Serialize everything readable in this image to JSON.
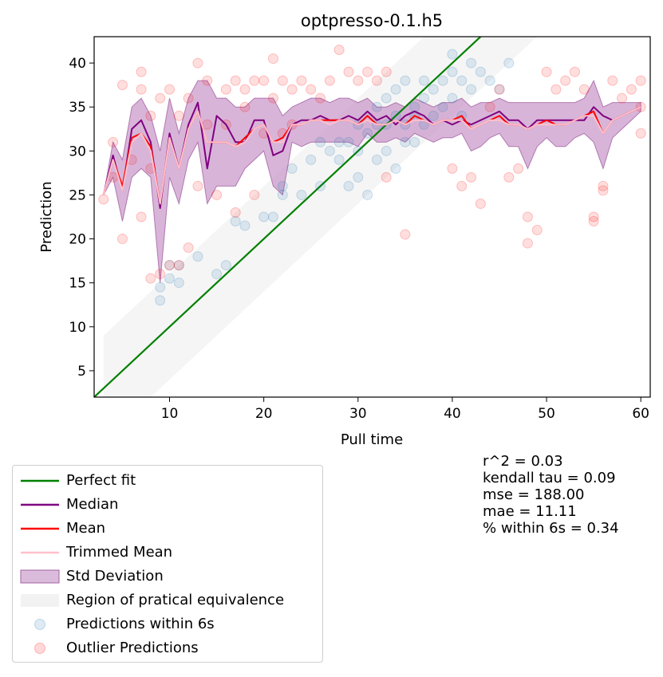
{
  "chart_data": {
    "type": "scatter",
    "title": "optpresso-0.1.h5",
    "xlabel": "Pull time",
    "ylabel": "Prediction",
    "xlim": [
      2,
      61
    ],
    "ylim": [
      2,
      43
    ],
    "xticks": [
      10,
      20,
      30,
      40,
      50,
      60
    ],
    "yticks": [
      5,
      10,
      15,
      20,
      25,
      30,
      35,
      40
    ],
    "grid": false,
    "legend_position": "bottom-left-outside",
    "equivalence_band": 6,
    "colors": {
      "perfect_fit": "#008000",
      "median": "#800080",
      "mean": "#ff0000",
      "trimmed_mean": "#ffc0cb",
      "std": "#c896c8",
      "band": "#f2f2f2",
      "within": "#1f77b4",
      "outlier": "#ff0000"
    },
    "series": [
      {
        "name": "Median",
        "x": [
          3,
          4,
          5,
          6,
          7,
          8,
          9,
          10,
          11,
          12,
          13,
          14,
          15,
          16,
          17,
          18,
          19,
          20,
          21,
          22,
          23,
          24,
          25,
          26,
          27,
          28,
          29,
          30,
          31,
          32,
          33,
          34,
          35,
          36,
          37,
          38,
          39,
          40,
          41,
          42,
          43,
          44,
          45,
          46,
          47,
          48,
          49,
          50,
          51,
          52,
          53,
          54,
          55,
          56,
          57,
          58,
          59,
          60
        ],
        "y": [
          25,
          29.5,
          25.5,
          32.5,
          33.5,
          31,
          23.5,
          32,
          28,
          33,
          35.5,
          28,
          34,
          33,
          31,
          31,
          33.5,
          33.5,
          29.5,
          30,
          33,
          33.5,
          33.5,
          34,
          33.5,
          33.5,
          34,
          33.5,
          34.5,
          33.5,
          34,
          33,
          34,
          34.5,
          34,
          33,
          33.5,
          33,
          33.5,
          33,
          33.5,
          34,
          34.5,
          33.5,
          33.5,
          32.5,
          33.5,
          33.5,
          33.5,
          33.5,
          33.5,
          33.5,
          35,
          34,
          33.5,
          34,
          34.5,
          35
        ]
      },
      {
        "name": "Mean",
        "x": [
          3,
          4,
          5,
          6,
          7,
          8,
          9,
          10,
          11,
          12,
          13,
          14,
          15,
          16,
          17,
          18,
          19,
          20,
          21,
          22,
          23,
          24,
          25,
          26,
          27,
          28,
          29,
          30,
          31,
          32,
          33,
          34,
          35,
          36,
          37,
          38,
          39,
          40,
          41,
          42,
          43,
          44,
          45,
          46,
          47,
          48,
          49,
          50,
          51,
          52,
          53,
          54,
          55,
          56,
          57,
          58,
          59,
          60
        ],
        "y": [
          25,
          29,
          26,
          31.5,
          32,
          30.5,
          24,
          31.5,
          28,
          32.5,
          34.5,
          31,
          31,
          31,
          30.5,
          31.5,
          32.5,
          33,
          31,
          31.5,
          33,
          33,
          33.5,
          33.5,
          33.5,
          33.5,
          33.5,
          33,
          34,
          33,
          33,
          33.5,
          33,
          34,
          33.5,
          33,
          33.5,
          33.5,
          34,
          32.5,
          33,
          33.5,
          34,
          33,
          33,
          32.5,
          33,
          33.5,
          33,
          33,
          33.5,
          34,
          34.5,
          32,
          33.5,
          34,
          34.5,
          35
        ]
      },
      {
        "name": "Trimmed Mean",
        "x": [
          3,
          4,
          5,
          6,
          7,
          8,
          9,
          10,
          11,
          12,
          13,
          14,
          15,
          16,
          17,
          18,
          19,
          20,
          21,
          22,
          23,
          24,
          25,
          26,
          27,
          28,
          29,
          30,
          31,
          32,
          33,
          34,
          35,
          36,
          37,
          38,
          39,
          40,
          41,
          42,
          43,
          44,
          45,
          46,
          47,
          48,
          49,
          50,
          51,
          52,
          53,
          54,
          55,
          56,
          57,
          58,
          59,
          60
        ],
        "y": [
          25,
          29,
          25.5,
          31,
          32,
          30,
          24,
          31.5,
          28,
          32.5,
          34.5,
          31,
          31,
          31,
          30.5,
          31,
          32.5,
          33,
          31,
          31,
          33,
          33,
          33.5,
          33.5,
          33,
          33.5,
          33.5,
          33,
          33.5,
          33,
          33,
          33.5,
          33,
          33.5,
          33.5,
          33,
          33.5,
          33.5,
          33.5,
          32.5,
          33,
          33.5,
          33.5,
          33,
          33,
          32.5,
          33,
          33,
          33,
          33,
          33.5,
          34,
          34,
          32,
          33.5,
          34,
          34.5,
          35
        ]
      },
      {
        "name": "Std Deviation",
        "x": [
          3,
          4,
          5,
          6,
          7,
          8,
          9,
          10,
          11,
          12,
          13,
          14,
          15,
          16,
          17,
          18,
          19,
          20,
          21,
          22,
          23,
          24,
          25,
          26,
          27,
          28,
          29,
          30,
          31,
          32,
          33,
          34,
          35,
          36,
          37,
          38,
          39,
          40,
          41,
          42,
          43,
          44,
          45,
          46,
          47,
          48,
          49,
          50,
          51,
          52,
          53,
          54,
          55,
          56,
          57,
          58,
          59,
          60
        ],
        "upper": [
          25,
          31,
          29,
          35,
          36,
          34,
          30,
          36,
          32,
          36,
          38,
          38,
          36,
          36,
          35,
          35,
          36,
          36,
          36,
          34,
          35,
          35.5,
          36,
          36,
          35.5,
          36,
          36,
          35.5,
          36,
          35,
          35,
          35.5,
          35,
          36,
          35.5,
          35,
          35.5,
          35.5,
          36,
          35,
          35.5,
          35.5,
          36,
          35.5,
          35.5,
          35.5,
          35.5,
          35.5,
          35.5,
          35.5,
          35.5,
          36,
          38,
          35,
          35.5,
          35.5,
          35.5,
          35.5
        ],
        "lower": [
          25,
          27,
          22,
          27,
          28,
          27,
          15,
          27,
          24,
          29,
          31,
          24,
          26,
          26,
          26,
          28,
          29,
          30,
          26,
          25,
          31,
          30.5,
          31,
          31,
          31,
          31,
          31,
          30.5,
          32,
          31,
          31,
          31.5,
          31,
          32,
          31.5,
          31,
          31.5,
          31.5,
          32,
          30,
          30.5,
          31.5,
          32,
          30.5,
          30.5,
          28,
          30.5,
          31.5,
          30.5,
          30.5,
          31.5,
          32,
          31,
          28,
          31.5,
          32.5,
          33.5,
          34.5
        ]
      }
    ],
    "scatter_within": {
      "name": "Predictions within 6s",
      "x": [
        9,
        9,
        10,
        10,
        11,
        11,
        13,
        15,
        16,
        17,
        18,
        20,
        21,
        22,
        22,
        23,
        24,
        25,
        26,
        26,
        27,
        28,
        28,
        29,
        29,
        30,
        30,
        30,
        31,
        31,
        32,
        32,
        32,
        33,
        33,
        33,
        34,
        34,
        34,
        35,
        35,
        35,
        36,
        36,
        36,
        37,
        37,
        37,
        38,
        38,
        39,
        39,
        40,
        40,
        40,
        41,
        41,
        42,
        42,
        43,
        44,
        45,
        46
      ],
      "y": [
        13,
        14.5,
        15.5,
        17,
        15,
        17,
        18,
        16,
        17,
        22,
        21.5,
        22.5,
        22.5,
        25,
        26,
        28,
        25,
        29,
        26,
        31,
        30,
        29,
        31,
        31,
        26,
        30,
        27,
        33,
        32,
        25,
        33,
        29,
        35,
        33,
        36,
        30,
        34,
        28,
        37,
        33,
        31,
        38,
        35,
        34,
        31,
        36,
        33,
        38,
        34,
        37,
        35,
        38,
        39,
        36,
        41,
        34,
        38,
        37,
        40,
        39,
        38,
        37,
        40
      ]
    },
    "scatter_outlier": {
      "name": "Outlier Predictions",
      "x": [
        3,
        4,
        4,
        5,
        5,
        6,
        7,
        7,
        7,
        8,
        8,
        8,
        9,
        9,
        10,
        10,
        11,
        11,
        12,
        12,
        13,
        13,
        14,
        14,
        15,
        16,
        16,
        17,
        17,
        18,
        18,
        19,
        19,
        20,
        20,
        21,
        21,
        22,
        22,
        23,
        23,
        24,
        25,
        26,
        27,
        28,
        29,
        30,
        31,
        32,
        33,
        33,
        35,
        40,
        41,
        42,
        43,
        44,
        45,
        46,
        47,
        48,
        48,
        49,
        50,
        51,
        52,
        53,
        54,
        55,
        55,
        56,
        56,
        57,
        58,
        59,
        60,
        60,
        60
      ],
      "y": [
        24.5,
        31,
        27,
        37.5,
        20,
        29,
        39,
        37,
        22.5,
        34,
        15.5,
        28,
        16,
        36,
        17,
        37,
        17,
        34,
        19,
        36,
        40,
        26,
        38,
        33,
        25,
        37,
        33,
        38,
        23,
        35,
        37,
        38,
        25,
        32,
        38,
        40.5,
        36,
        32,
        38,
        37,
        33,
        38,
        37,
        36,
        38,
        41.5,
        39,
        38,
        39,
        38,
        39,
        27,
        20.5,
        28,
        26,
        27,
        24,
        35,
        37,
        27,
        28,
        22.5,
        19.5,
        21,
        39,
        37,
        38,
        39,
        37,
        22.5,
        22,
        25.5,
        26,
        38,
        36,
        37,
        38,
        35,
        32
      ]
    },
    "legend": [
      {
        "label": "Perfect fit",
        "kind": "line",
        "color": "#008000"
      },
      {
        "label": "Median",
        "kind": "line",
        "color": "#800080"
      },
      {
        "label": "Mean",
        "kind": "line",
        "color": "#ff0000"
      },
      {
        "label": "Trimmed Mean",
        "kind": "line",
        "color": "#ffc0cb"
      },
      {
        "label": "Std Deviation",
        "kind": "patch",
        "color": "#c896c8"
      },
      {
        "label": "Region of pratical equivalence",
        "kind": "band",
        "color": "#f2f2f2"
      },
      {
        "label": "Predictions within 6s",
        "kind": "dot",
        "color": "#1f77b4"
      },
      {
        "label": "Outlier Predictions",
        "kind": "dot",
        "color": "#ff0000"
      }
    ],
    "stats": [
      "r^2 = 0.03",
      "kendall tau = 0.09",
      "mse = 188.00",
      "mae = 11.11",
      "% within 6s = 0.34"
    ]
  }
}
